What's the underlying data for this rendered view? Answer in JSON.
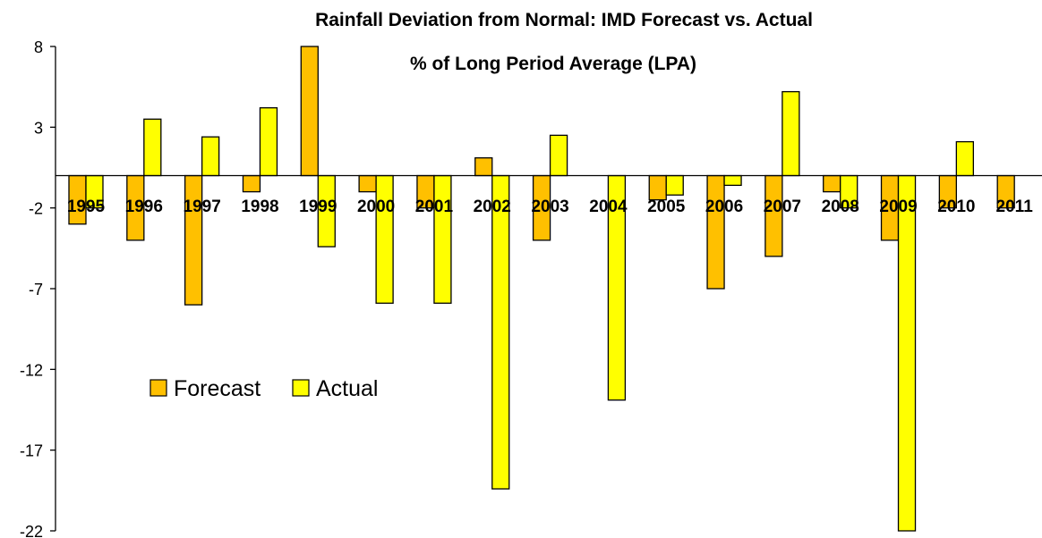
{
  "chart_data": {
    "type": "bar",
    "title": "Rainfall Deviation from Normal: IMD Forecast vs. Actual",
    "subtitle": "% of Long Period Average (LPA)",
    "categories": [
      "1995",
      "1996",
      "1997",
      "1998",
      "1999",
      "2000",
      "2001",
      "2002",
      "2003",
      "2004",
      "2005",
      "2006",
      "2007",
      "2008",
      "2009",
      "2010",
      "2011"
    ],
    "series": [
      {
        "name": "Forecast",
        "color": "#FFC000",
        "values": [
          -3,
          -4,
          -8,
          -1,
          8,
          -1,
          -2,
          1.1,
          -4,
          0,
          -1.5,
          -7,
          -5,
          -1,
          -4,
          -2,
          -2
        ]
      },
      {
        "name": "Actual",
        "color": "#FFFF00",
        "values": [
          -2,
          3.5,
          2.4,
          4.2,
          -4.4,
          -7.9,
          -7.9,
          -19.4,
          2.5,
          -13.9,
          -1.2,
          -0.6,
          5.2,
          -2,
          -22,
          2.1,
          0
        ]
      }
    ],
    "ylim": [
      -22,
      8
    ],
    "yticks": [
      8,
      3,
      -2,
      -7,
      -12,
      -17,
      -22
    ],
    "grid": false,
    "legend": "left-center"
  }
}
